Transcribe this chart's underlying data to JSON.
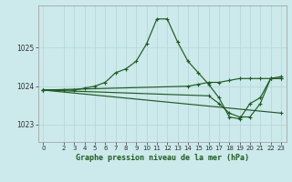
{
  "title": "Graphe pression niveau de la mer (hPa)",
  "background_color": "#cce9eb",
  "grid_color": "#b0d8db",
  "line_color": "#1e5c1e",
  "x_ticks": [
    0,
    2,
    3,
    4,
    5,
    6,
    7,
    8,
    9,
    10,
    11,
    12,
    13,
    14,
    15,
    16,
    17,
    18,
    19,
    20,
    21,
    22,
    23
  ],
  "y_ticks": [
    1023,
    1024,
    1025
  ],
  "ylim": [
    1022.55,
    1026.1
  ],
  "xlim": [
    -0.5,
    23.5
  ],
  "series": [
    {
      "x": [
        0,
        2,
        3,
        4,
        5,
        6,
        7,
        8,
        9,
        10,
        11,
        12,
        13,
        14,
        15,
        16,
        17,
        18,
        19,
        20,
        21,
        22,
        23
      ],
      "y": [
        1023.9,
        1023.9,
        1023.9,
        1023.95,
        1024.0,
        1024.1,
        1024.35,
        1024.45,
        1024.65,
        1025.1,
        1025.75,
        1025.75,
        1025.15,
        1024.65,
        1024.35,
        1024.05,
        1023.7,
        1023.2,
        1023.15,
        1023.55,
        1023.7,
        1024.2,
        1024.25
      ]
    },
    {
      "x": [
        0,
        14,
        15,
        16,
        17,
        18,
        19,
        20,
        21,
        22,
        23
      ],
      "y": [
        1023.9,
        1024.0,
        1024.05,
        1024.1,
        1024.1,
        1024.15,
        1024.2,
        1024.2,
        1024.2,
        1024.2,
        1024.2
      ]
    },
    {
      "x": [
        0,
        16,
        17,
        18,
        19,
        20,
        21,
        22,
        23
      ],
      "y": [
        1023.9,
        1023.75,
        1023.55,
        1023.3,
        1023.2,
        1023.2,
        1023.55,
        1024.2,
        1024.2
      ]
    },
    {
      "x": [
        0,
        23
      ],
      "y": [
        1023.9,
        1023.3
      ]
    }
  ]
}
